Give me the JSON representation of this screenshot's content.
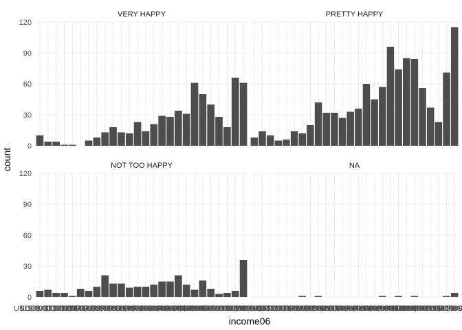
{
  "chart_data": {
    "type": "bar",
    "x_variable": "income06",
    "xlabel": "income06",
    "ylabel": "count",
    "ylim": [
      0,
      120
    ],
    "y_ticks": [
      0,
      30,
      60,
      90,
      120
    ],
    "categories": [
      "UNDER $1 000",
      "$1 000 TO 2 999",
      "$3 000 TO 3 999",
      "$4 000 TO 4 999",
      "$5 000 TO 5 999",
      "$6 000 TO 6 999",
      "$7 000 TO 7 999",
      "$8 000 TO 9 999",
      "$10000 TO 12499",
      "$12500 TO 14999",
      "$15000 TO 17499",
      "$17500 TO 19999",
      "$20000 TO 22499",
      "$22500 TO 24999",
      "$25000 TO 29999",
      "$30000 TO 34999",
      "$35000 TO 39999",
      "$40000 TO 49999",
      "$50000 TO 59999",
      "$60000 TO 74999",
      "$75000 TO 89999",
      "$90000 TO 109999",
      "$110000 TO $129999",
      "$130000 TO $149999",
      "$150000 OR OVER",
      "REFUSED"
    ],
    "grid": true,
    "facets": [
      {
        "title": "VERY HAPPY",
        "values": [
          10,
          4,
          4,
          1,
          1,
          0,
          5,
          8,
          13,
          18,
          13,
          12,
          23,
          14,
          21,
          29,
          28,
          34,
          31,
          61,
          50,
          40,
          28,
          18,
          66,
          61
        ]
      },
      {
        "title": "PRETTY HAPPY",
        "values": [
          8,
          14,
          10,
          5,
          6,
          14,
          12,
          20,
          42,
          32,
          32,
          27,
          33,
          36,
          60,
          45,
          57,
          96,
          74,
          85,
          84,
          56,
          37,
          23,
          71,
          115
        ]
      },
      {
        "title": "NOT TOO HAPPY",
        "values": [
          6,
          7,
          4,
          4,
          1,
          8,
          6,
          10,
          21,
          13,
          13,
          9,
          10,
          10,
          12,
          15,
          15,
          21,
          12,
          7,
          16,
          8,
          3,
          4,
          6,
          36
        ]
      },
      {
        "title": "NA",
        "values": [
          0,
          0,
          0,
          0,
          0,
          0,
          1,
          0,
          1,
          0,
          0,
          0,
          0,
          0,
          0,
          0,
          1,
          0,
          1,
          0,
          1,
          0,
          0,
          0,
          1,
          4
        ]
      }
    ],
    "bar_color": "#4d4d4d",
    "grid_color": "#ebebeb"
  }
}
